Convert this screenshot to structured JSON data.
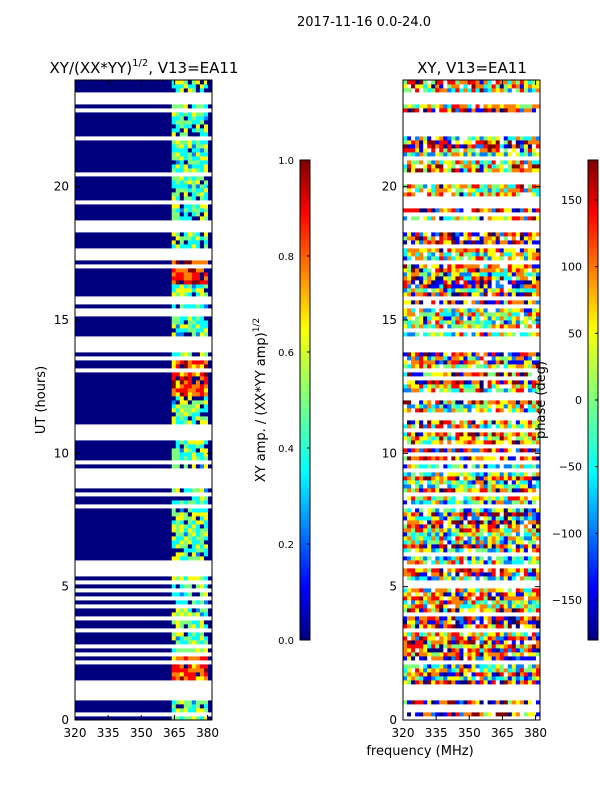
{
  "suptitle": "2017-11-16 0.0-24.0",
  "xlabel_common": "frequency (MHz)",
  "colors": {
    "missing": "#ffffff",
    "jet": [
      "#00007f",
      "#0000ff",
      "#007fff",
      "#00ffff",
      "#7fff7f",
      "#ffff00",
      "#ff7f00",
      "#ff0000",
      "#7f0000"
    ]
  },
  "chart_data": [
    {
      "type": "heatmap",
      "name": "xy-norm-amplitude",
      "title": "XY/(XX*YY)",
      "title_exponent": "1/2",
      "title_suffix": ", V13=EA11",
      "xlabel": "",
      "ylabel": "UT (hours)",
      "xlim": [
        320,
        382
      ],
      "ylim": [
        0,
        24
      ],
      "xticks": [
        320,
        335,
        350,
        365,
        380
      ],
      "yticks": [
        0,
        5,
        10,
        15,
        20
      ],
      "empty_bands": [
        [
          0.75,
          1.3
        ],
        [
          23.1,
          23.5
        ],
        [
          18.3,
          18.6
        ],
        [
          15.7,
          15.95
        ],
        [
          13.95,
          14.2
        ],
        [
          7.95,
          8.15
        ]
      ],
      "bright_band": [
        363,
        381
      ],
      "hot_rows": [
        [
          1.3,
          2.6
        ],
        [
          12.1,
          13.7
        ],
        [
          16.4,
          17.3
        ]
      ],
      "colorbar": {
        "label": "XY amp. / (XX*YY amp)",
        "label_exponent": "1/2",
        "range": [
          0.0,
          1.0
        ],
        "ticks": [
          "0.0",
          "0.2",
          "0.4",
          "0.6",
          "0.8",
          "1.0"
        ]
      }
    },
    {
      "type": "heatmap",
      "name": "xy-phase",
      "title": "XY, V13=EA11",
      "xlabel": "frequency (MHz)",
      "ylabel": "",
      "xlim": [
        320,
        382
      ],
      "ylim": [
        0,
        24
      ],
      "xticks": [
        320,
        335,
        350,
        365,
        380
      ],
      "yticks": [
        0,
        5,
        10,
        15,
        20
      ],
      "empty_bands": [
        [
          0.75,
          1.3
        ],
        [
          23.1,
          23.5
        ],
        [
          18.3,
          18.6
        ],
        [
          15.7,
          15.95
        ],
        [
          13.95,
          14.2
        ],
        [
          7.95,
          8.15
        ]
      ],
      "colorbar": {
        "label": "phase (deg)",
        "range": [
          -180,
          180
        ],
        "ticks": [
          "−150",
          "−100",
          "−50",
          "0",
          "50",
          "100",
          "150"
        ]
      }
    }
  ]
}
